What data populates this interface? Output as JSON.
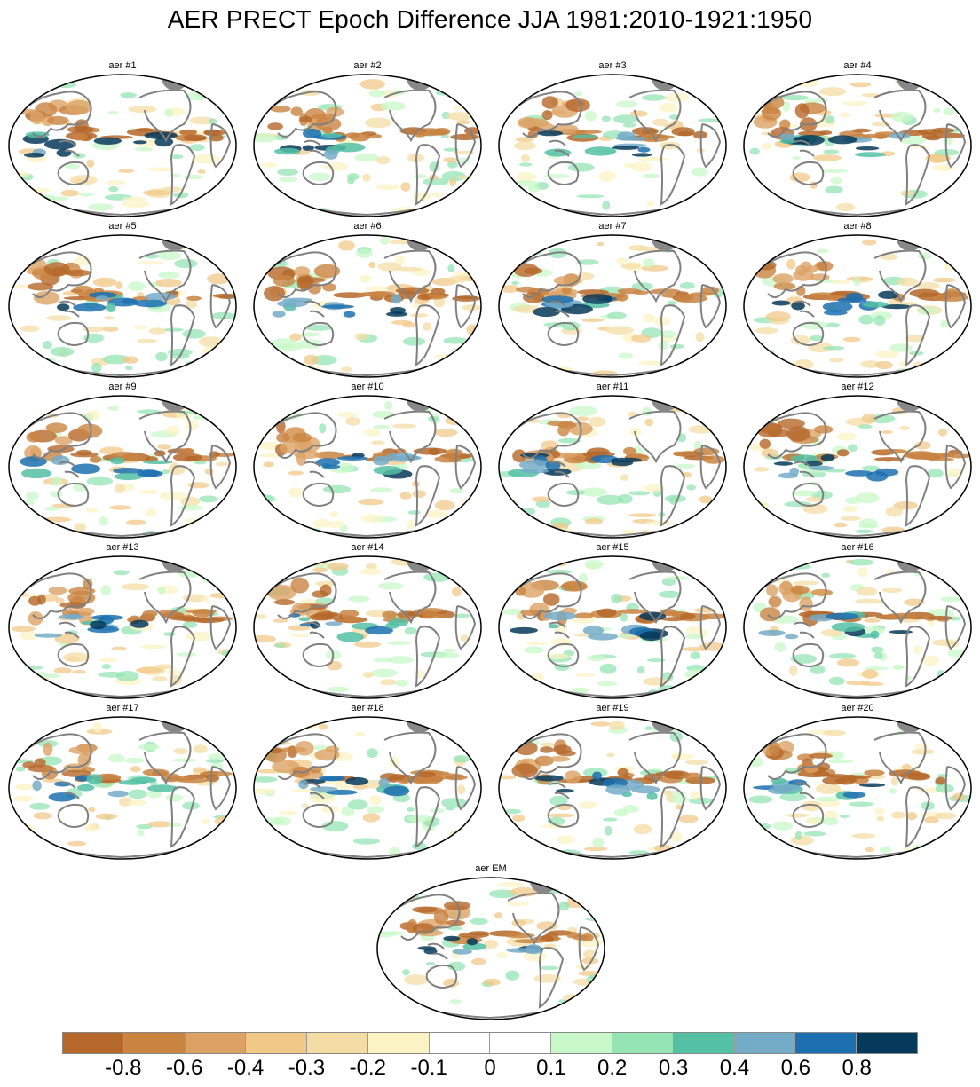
{
  "title": "AER PRECT Epoch Difference JJA 1981:2010-1921:1950",
  "panels": [
    {
      "label": "aer #1"
    },
    {
      "label": "aer #2"
    },
    {
      "label": "aer #3"
    },
    {
      "label": "aer #4"
    },
    {
      "label": "aer #5"
    },
    {
      "label": "aer #6"
    },
    {
      "label": "aer #7"
    },
    {
      "label": "aer #8"
    },
    {
      "label": "aer #9"
    },
    {
      "label": "aer #10"
    },
    {
      "label": "aer #11"
    },
    {
      "label": "aer #12"
    },
    {
      "label": "aer #13"
    },
    {
      "label": "aer #14"
    },
    {
      "label": "aer #15"
    },
    {
      "label": "aer #16"
    },
    {
      "label": "aer #17"
    },
    {
      "label": "aer #18"
    },
    {
      "label": "aer #19"
    },
    {
      "label": "aer #20"
    },
    {
      "label": "aer EM"
    }
  ],
  "colorbar": {
    "colors": [
      "#b5682a",
      "#c98442",
      "#dca265",
      "#f1c888",
      "#f4dda4",
      "#fbf3c4",
      "#ffffff",
      "#ffffff",
      "#c8f8c8",
      "#94e4b4",
      "#54c0a4",
      "#74acc8",
      "#1c70b0",
      "#063a5a"
    ],
    "labels": [
      "-0.8",
      "-0.6",
      "-0.4",
      "-0.3",
      "-0.2",
      "-0.1",
      "0",
      "0.1",
      "0.2",
      "0.3",
      "0.4",
      "0.6",
      "0.8"
    ]
  }
}
